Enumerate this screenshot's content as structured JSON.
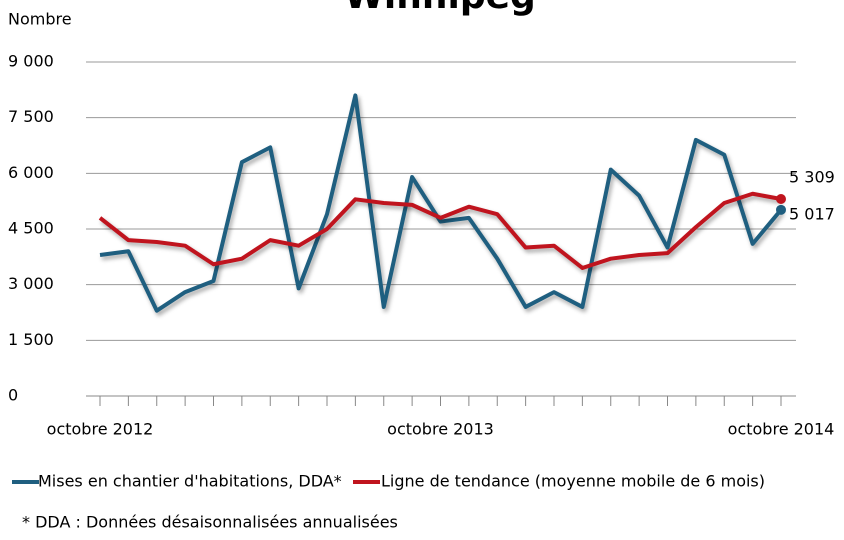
{
  "chart_data": {
    "type": "line",
    "title": "Winnipeg",
    "y_label": "Nombre",
    "footnote": "* DDA : Données désaisonnalisées annualisées",
    "categories": [
      "octobre 2012",
      null,
      null,
      null,
      null,
      null,
      null,
      null,
      null,
      null,
      null,
      null,
      "octobre 2013",
      null,
      null,
      null,
      null,
      null,
      null,
      null,
      null,
      null,
      null,
      null,
      "octobre 2014"
    ],
    "series": [
      {
        "name": "Mises en chantier d'habitations, DDA*",
        "color": "#1f5f80",
        "values": [
          3800,
          3900,
          2300,
          2800,
          3100,
          6300,
          6700,
          2900,
          4900,
          8100,
          2400,
          5900,
          4700,
          4800,
          3700,
          2400,
          2800,
          2400,
          6100,
          5400,
          4000,
          6900,
          6500,
          4100,
          5017
        ],
        "value_labels": [
          null,
          null,
          null,
          null,
          null,
          null,
          null,
          null,
          null,
          null,
          null,
          null,
          null,
          null,
          null,
          null,
          null,
          null,
          null,
          null,
          null,
          null,
          null,
          null,
          "5 017"
        ]
      },
      {
        "name": "Ligne de tendance (moyenne mobile de 6 mois)",
        "color": "#c0141e",
        "values": [
          4800,
          4200,
          4150,
          4050,
          3550,
          3700,
          4200,
          4050,
          4500,
          5300,
          5200,
          5150,
          4800,
          5100,
          4900,
          4000,
          4050,
          3450,
          3700,
          3800,
          3850,
          4550,
          5200,
          5450,
          5309
        ],
        "value_labels": [
          null,
          null,
          null,
          null,
          null,
          null,
          null,
          null,
          null,
          null,
          null,
          null,
          null,
          null,
          null,
          null,
          null,
          null,
          null,
          null,
          null,
          null,
          null,
          null,
          "5 309"
        ]
      }
    ],
    "ylim": [
      0,
      9000
    ],
    "yticks": [
      0,
      {
        "value": 1500,
        "label": "1 500"
      },
      {
        "value": 3000,
        "label": "3 000"
      },
      {
        "value": 4500,
        "label": "4 500"
      },
      {
        "value": 6000,
        "label": "6 000"
      },
      {
        "value": 7500,
        "label": "7 500"
      },
      {
        "value": 9000,
        "label": "9 000"
      }
    ],
    "grid": true
  }
}
